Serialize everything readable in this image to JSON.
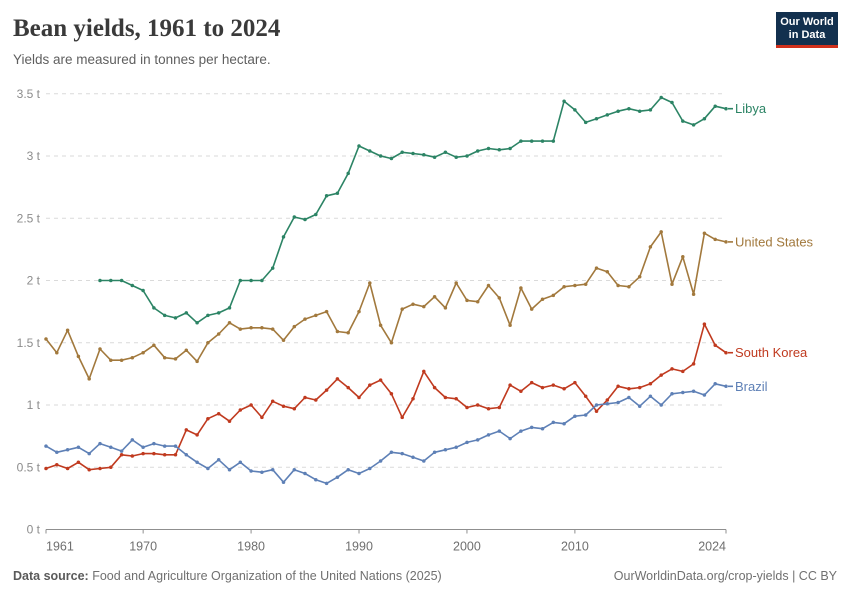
{
  "header": {
    "title": "Bean yields, 1961 to 2024",
    "subtitle": "Yields are measured in tonnes per hectare."
  },
  "logo": {
    "line1": "Our World",
    "line2": "in Data",
    "bg": "#12304e",
    "accent": "#d0301c"
  },
  "footer": {
    "source_label": "Data source:",
    "source_text": " Food and Agriculture Organization of the United Nations (2025)",
    "right_text": "OurWorldinData.org/crop-yields | CC BY"
  },
  "chart_data": {
    "type": "line",
    "title": "Bean yields, 1961 to 2024",
    "xlabel": "",
    "ylabel": "tonnes per hectare",
    "xlim": [
      1961,
      2024
    ],
    "ylim": [
      0,
      3.5
    ],
    "x_ticks": [
      1961,
      1970,
      1980,
      1990,
      2000,
      2010,
      2024
    ],
    "y_ticks": [
      0,
      0.5,
      1,
      1.5,
      2,
      2.5,
      3,
      3.5
    ],
    "y_tick_suffix": " t",
    "grid": "horizontal-dashed",
    "legend_position": "right-end-labels",
    "x": [
      1961,
      1962,
      1963,
      1964,
      1965,
      1966,
      1967,
      1968,
      1969,
      1970,
      1971,
      1972,
      1973,
      1974,
      1975,
      1976,
      1977,
      1978,
      1979,
      1980,
      1981,
      1982,
      1983,
      1984,
      1985,
      1986,
      1987,
      1988,
      1989,
      1990,
      1991,
      1992,
      1993,
      1994,
      1995,
      1996,
      1997,
      1998,
      1999,
      2000,
      2001,
      2002,
      2003,
      2004,
      2005,
      2006,
      2007,
      2008,
      2009,
      2010,
      2011,
      2012,
      2013,
      2014,
      2015,
      2016,
      2017,
      2018,
      2019,
      2020,
      2021,
      2022,
      2023,
      2024
    ],
    "series": [
      {
        "name": "Libya",
        "color": "#2c8465",
        "values": [
          null,
          null,
          null,
          null,
          null,
          2.0,
          2.0,
          2.0,
          1.96,
          1.92,
          1.78,
          1.72,
          1.7,
          1.74,
          1.66,
          1.72,
          1.74,
          1.78,
          2.0,
          2.0,
          2.0,
          2.1,
          2.35,
          2.51,
          2.49,
          2.53,
          2.68,
          2.7,
          2.86,
          3.08,
          3.04,
          3.0,
          2.98,
          3.03,
          3.02,
          3.01,
          2.99,
          3.03,
          2.99,
          3.0,
          3.04,
          3.06,
          3.05,
          3.06,
          3.12,
          3.12,
          3.12,
          3.12,
          3.44,
          3.37,
          3.27,
          3.3,
          3.33,
          3.36,
          3.38,
          3.36,
          3.37,
          3.47,
          3.43,
          3.28,
          3.25,
          3.3,
          3.4,
          3.38
        ]
      },
      {
        "name": "United States",
        "color": "#a2793d",
        "values": [
          1.53,
          1.42,
          1.6,
          1.39,
          1.21,
          1.45,
          1.36,
          1.36,
          1.38,
          1.42,
          1.48,
          1.38,
          1.37,
          1.44,
          1.35,
          1.5,
          1.57,
          1.66,
          1.61,
          1.62,
          1.62,
          1.61,
          1.52,
          1.63,
          1.69,
          1.72,
          1.75,
          1.59,
          1.58,
          1.75,
          1.98,
          1.64,
          1.5,
          1.77,
          1.81,
          1.79,
          1.87,
          1.78,
          1.98,
          1.84,
          1.83,
          1.96,
          1.86,
          1.64,
          1.94,
          1.77,
          1.85,
          1.88,
          1.95,
          1.96,
          1.97,
          2.1,
          2.07,
          1.96,
          1.95,
          2.03,
          2.27,
          2.39,
          1.97,
          2.19,
          1.89,
          2.38,
          2.33,
          2.31
        ]
      },
      {
        "name": "South Korea",
        "color": "#c03a1f",
        "values": [
          0.49,
          0.52,
          0.49,
          0.54,
          0.48,
          0.49,
          0.5,
          0.6,
          0.59,
          0.61,
          0.61,
          0.6,
          0.6,
          0.8,
          0.76,
          0.89,
          0.93,
          0.87,
          0.96,
          1.0,
          0.9,
          1.03,
          0.99,
          0.97,
          1.06,
          1.04,
          1.12,
          1.21,
          1.14,
          1.06,
          1.16,
          1.2,
          1.09,
          0.9,
          1.05,
          1.27,
          1.14,
          1.06,
          1.05,
          0.98,
          1.0,
          0.97,
          0.98,
          1.16,
          1.11,
          1.18,
          1.14,
          1.16,
          1.13,
          1.18,
          1.07,
          0.95,
          1.04,
          1.15,
          1.13,
          1.14,
          1.17,
          1.24,
          1.29,
          1.27,
          1.33,
          1.65,
          1.48,
          1.42
        ]
      },
      {
        "name": "Brazil",
        "color": "#5e80b6",
        "values": [
          0.67,
          0.62,
          0.64,
          0.66,
          0.61,
          0.69,
          0.66,
          0.63,
          0.72,
          0.66,
          0.69,
          0.67,
          0.67,
          0.6,
          0.54,
          0.49,
          0.56,
          0.48,
          0.54,
          0.47,
          0.46,
          0.48,
          0.38,
          0.48,
          0.45,
          0.4,
          0.37,
          0.42,
          0.48,
          0.45,
          0.49,
          0.55,
          0.62,
          0.61,
          0.58,
          0.55,
          0.62,
          0.64,
          0.66,
          0.7,
          0.72,
          0.76,
          0.79,
          0.73,
          0.79,
          0.82,
          0.81,
          0.86,
          0.85,
          0.91,
          0.92,
          1.0,
          1.01,
          1.02,
          1.06,
          0.99,
          1.07,
          1.0,
          1.09,
          1.1,
          1.11,
          1.08,
          1.17,
          1.15
        ]
      }
    ]
  }
}
